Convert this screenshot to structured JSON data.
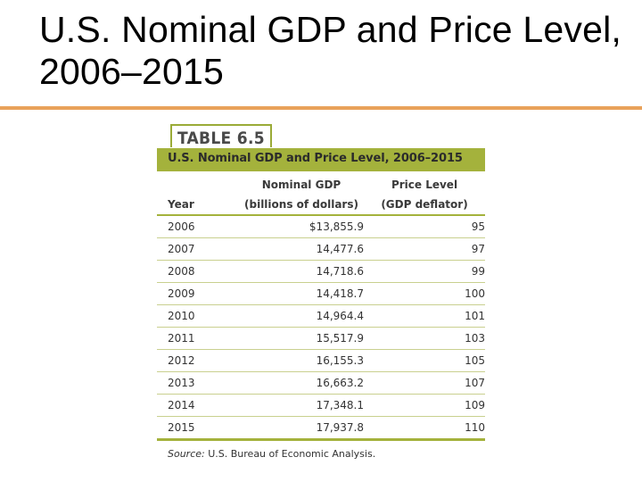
{
  "slide": {
    "title": "U.S. Nominal GDP and Price Level, 2006–2015"
  },
  "table": {
    "tag": "TABLE 6.5",
    "caption": "U.S. Nominal GDP and Price Level, 2006–2015",
    "headers": {
      "year": "Year",
      "gdp_line1": "Nominal GDP",
      "gdp_line2": "(billions of dollars)",
      "pl_line1": "Price Level",
      "pl_line2": "(GDP deflator)"
    },
    "rows": [
      {
        "year": "2006",
        "gdp": "$13,855.9",
        "pl": "95"
      },
      {
        "year": "2007",
        "gdp": "14,477.6",
        "pl": "97"
      },
      {
        "year": "2008",
        "gdp": "14,718.6",
        "pl": "99"
      },
      {
        "year": "2009",
        "gdp": "14,418.7",
        "pl": "100"
      },
      {
        "year": "2010",
        "gdp": "14,964.4",
        "pl": "101"
      },
      {
        "year": "2011",
        "gdp": "15,517.9",
        "pl": "103"
      },
      {
        "year": "2012",
        "gdp": "16,155.3",
        "pl": "105"
      },
      {
        "year": "2013",
        "gdp": "16,663.2",
        "pl": "107"
      },
      {
        "year": "2014",
        "gdp": "17,348.1",
        "pl": "109"
      },
      {
        "year": "2015",
        "gdp": "17,937.8",
        "pl": "110"
      }
    ],
    "source_label": "Source:",
    "source_text": " U.S. Bureau of Economic Analysis."
  },
  "colors": {
    "accent_rule": "#e9a25a",
    "table_green": "#a4b23c"
  }
}
